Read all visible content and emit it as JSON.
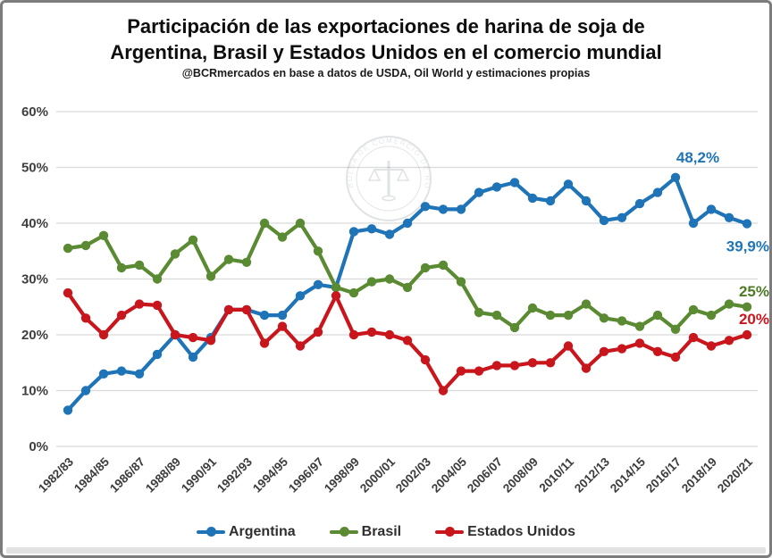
{
  "title": "Participación de las exportaciones de harina de soja de Argentina, Brasil y Estados Unidos en el comercio mundial",
  "subtitle": "@BCRmercados en base a datos de  USDA, Oil World y estimaciones propias",
  "watermark": {
    "text": "BOLSA DE COMERCIO DE ROSARIO",
    "icon": "scales-caduceus-seal"
  },
  "colors": {
    "argentina": "#1f74b8",
    "brasil": "#5a8a32",
    "estados_unidos": "#c9161d",
    "annotation_brasil": "#4e7a27",
    "gridline": "#d9d9d9",
    "axis_text": "#3f3f3f"
  },
  "legend": {
    "items": [
      {
        "label": "Argentina",
        "color_key": "argentina"
      },
      {
        "label": "Brasil",
        "color_key": "brasil"
      },
      {
        "label": "Estados Unidos",
        "color_key": "estados_unidos"
      }
    ]
  },
  "chart_data": {
    "type": "line",
    "title": "Participación de las exportaciones de harina de soja de Argentina, Brasil y Estados Unidos en el comercio mundial",
    "xlabel": "",
    "ylabel": "",
    "ylim": [
      0,
      60
    ],
    "grid": true,
    "legend_position": "bottom",
    "yticks": [
      "0%",
      "10%",
      "20%",
      "30%",
      "40%",
      "50%",
      "60%"
    ],
    "x_tick_labels": [
      "1982/83",
      "1984/85",
      "1986/87",
      "1988/89",
      "1990/91",
      "1992/93",
      "1994/95",
      "1996/97",
      "1998/99",
      "2000/01",
      "2002/03",
      "2004/05",
      "2006/07",
      "2008/09",
      "2010/11",
      "2012/13",
      "2014/15",
      "2016/17",
      "2018/19",
      "2020/21"
    ],
    "categories": [
      "1982/83",
      "1983/84",
      "1984/85",
      "1985/86",
      "1986/87",
      "1987/88",
      "1988/89",
      "1989/90",
      "1990/91",
      "1991/92",
      "1992/93",
      "1993/94",
      "1994/95",
      "1995/96",
      "1996/97",
      "1997/98",
      "1998/99",
      "1999/00",
      "2000/01",
      "2001/02",
      "2002/03",
      "2003/04",
      "2004/05",
      "2005/06",
      "2006/07",
      "2007/08",
      "2008/09",
      "2009/10",
      "2010/11",
      "2011/12",
      "2012/13",
      "2013/14",
      "2014/15",
      "2015/16",
      "2016/17",
      "2017/18",
      "2018/19",
      "2019/20",
      "2020/21"
    ],
    "series": [
      {
        "name": "Argentina",
        "color_key": "argentina",
        "values": [
          6.5,
          10,
          13,
          13.5,
          13,
          16.5,
          20,
          16,
          19.5,
          24.5,
          24.5,
          23.5,
          23.5,
          27,
          29,
          28.5,
          38.5,
          39,
          38,
          40,
          43,
          42.5,
          42.5,
          45.5,
          46.5,
          47.3,
          44.5,
          44,
          47,
          44,
          40.5,
          41,
          43.5,
          45.5,
          48.2,
          40,
          42.5,
          41,
          39.9
        ]
      },
      {
        "name": "Brasil",
        "color_key": "brasil",
        "values": [
          35.5,
          36,
          37.8,
          32,
          32.5,
          30,
          34.5,
          37,
          30.5,
          33.5,
          33,
          40,
          37.5,
          40,
          35,
          28.5,
          27.5,
          29.5,
          30,
          28.5,
          32,
          32.5,
          29.5,
          24,
          23.5,
          21.3,
          24.8,
          23.5,
          23.5,
          25.5,
          23,
          22.5,
          21.5,
          23.5,
          21,
          24.5,
          23.5,
          25.5,
          25
        ]
      },
      {
        "name": "Estados Unidos",
        "color_key": "estados_unidos",
        "values": [
          27.5,
          23,
          20,
          23.5,
          25.5,
          25.3,
          20,
          19.5,
          19,
          24.5,
          24.5,
          18.5,
          21.5,
          18,
          20.5,
          27,
          20,
          20.5,
          20,
          19,
          15.5,
          10,
          13.5,
          13.5,
          14.5,
          14.5,
          15,
          15,
          18,
          14,
          17,
          17.5,
          18.5,
          17,
          16,
          19.5,
          18,
          19,
          20
        ]
      }
    ],
    "annotations": [
      {
        "text": "48,2%",
        "color_key": "argentina",
        "series_index": 0,
        "point_index": 34,
        "placement": "above-point"
      },
      {
        "text": "39,9%",
        "color_key": "argentina",
        "series_index": 0,
        "point_index": 38,
        "placement": "right-end-below"
      },
      {
        "text": "25%",
        "color_key": "annotation_brasil",
        "series_index": 1,
        "point_index": 38,
        "placement": "right-end-above"
      },
      {
        "text": "20%",
        "color_key": "estados_unidos",
        "series_index": 2,
        "point_index": 38,
        "placement": "right-end-above"
      }
    ]
  }
}
